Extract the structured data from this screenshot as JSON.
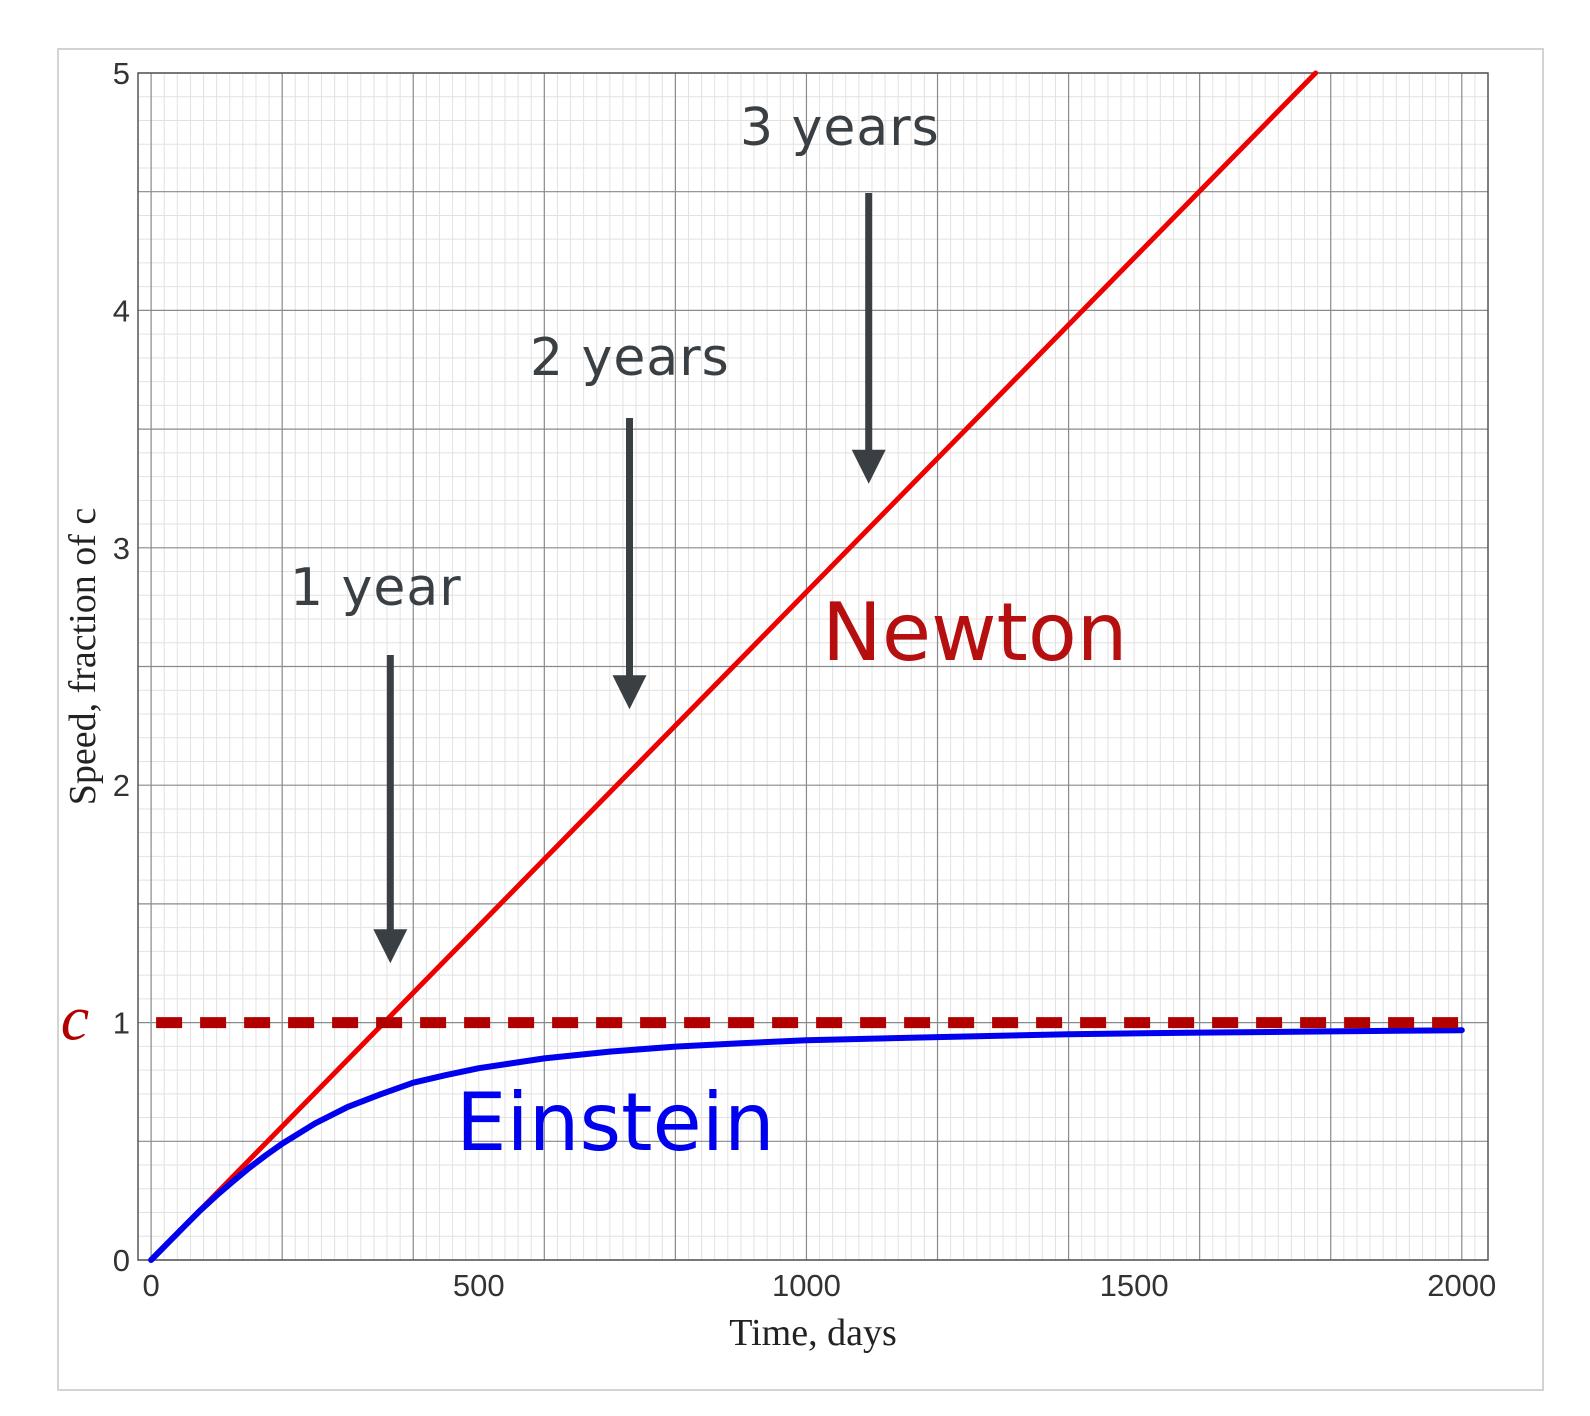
{
  "chart_data": {
    "type": "line",
    "xlabel": "Time, days",
    "ylabel": "Speed, fraction of c",
    "xlim": [
      -20,
      2040
    ],
    "ylim": [
      0,
      5
    ],
    "x_ticks": [
      0,
      500,
      1000,
      1500,
      2000
    ],
    "y_ticks": [
      0,
      1,
      2,
      3,
      4,
      5
    ],
    "grid": true,
    "series": [
      {
        "name": "Newton",
        "color": "#ee0000",
        "x": [
          0,
          1777
        ],
        "y": [
          0,
          5
        ]
      },
      {
        "name": "Einstein",
        "color": "#0000ee",
        "x": [
          0,
          25,
          50,
          75,
          100,
          125,
          150,
          175,
          200,
          250,
          300,
          350,
          400,
          450,
          500,
          600,
          700,
          800,
          900,
          1000,
          1200,
          1400,
          1600,
          1800,
          2000
        ],
        "y": [
          0,
          0.07,
          0.14,
          0.209,
          0.272,
          0.331,
          0.389,
          0.441,
          0.49,
          0.575,
          0.645,
          0.698,
          0.747,
          0.779,
          0.808,
          0.849,
          0.878,
          0.899,
          0.913,
          0.926,
          0.939,
          0.951,
          0.958,
          0.963,
          0.968
        ]
      }
    ],
    "reference_line": {
      "label": "c",
      "y": 1,
      "color": "#b00000",
      "style": "dashed"
    },
    "annotations": [
      {
        "text": "1 year",
        "x": 365,
        "y": 1.25
      },
      {
        "text": "2 years",
        "x": 730,
        "y": 2.32
      },
      {
        "text": "3 years",
        "x": 1095,
        "y": 3.27
      }
    ],
    "series_labels": [
      {
        "text": "Newton",
        "color": "#b50f0f"
      },
      {
        "text": "Einstein",
        "color": "#0000ee"
      }
    ]
  }
}
